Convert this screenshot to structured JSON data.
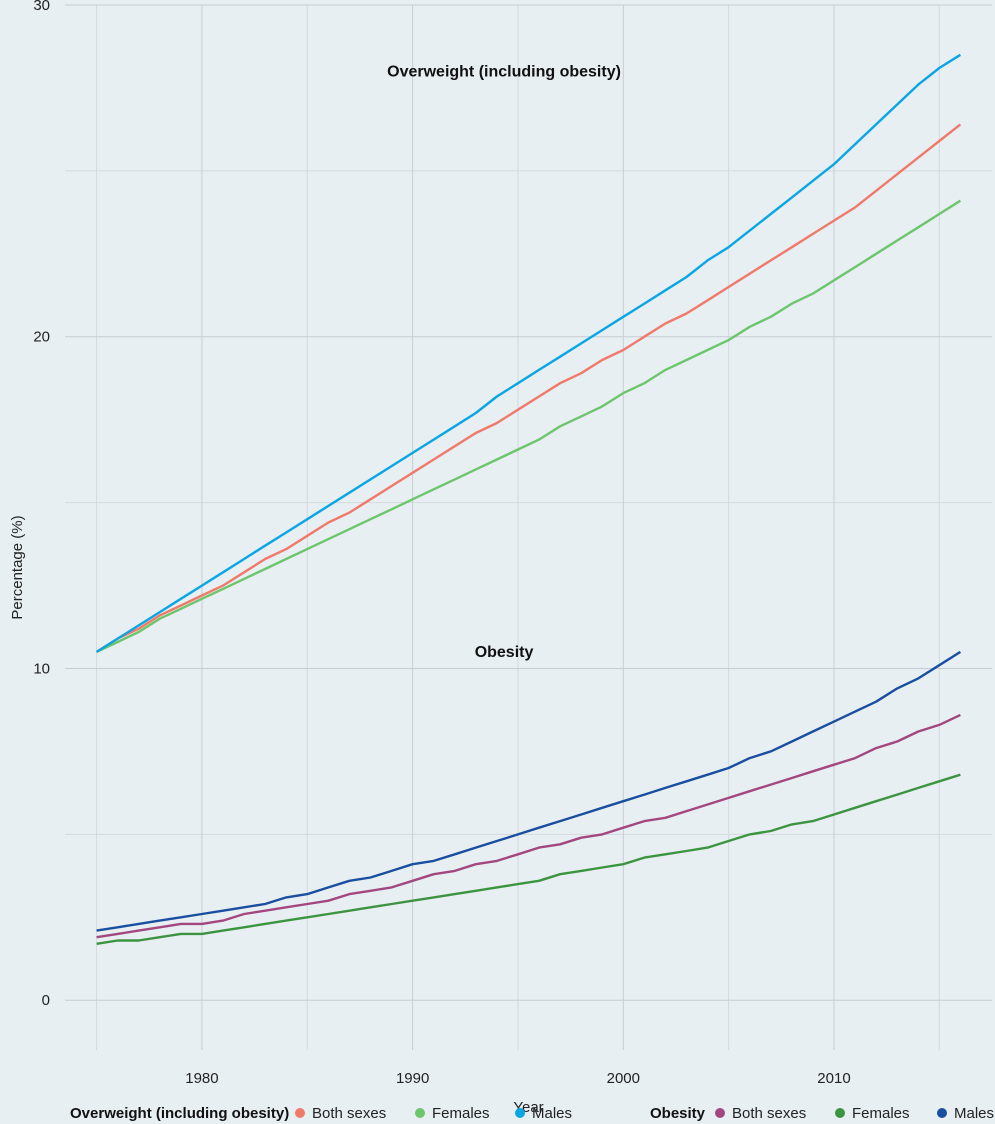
{
  "chart_data": {
    "type": "line",
    "xlabel": "Year",
    "ylabel": "Percentage (%)",
    "xlim": [
      1973.5,
      2017.5
    ],
    "ylim": [
      -1.5,
      30
    ],
    "x_ticks": [
      1980,
      1990,
      2000,
      2010
    ],
    "y_ticks": [
      0,
      10,
      20,
      30
    ],
    "grid": true,
    "legend_position": "bottom",
    "annotations": [
      {
        "text": "Overweight (including obesity)",
        "x": 1996,
        "y": 28.0
      },
      {
        "text": "Obesity",
        "x": 1996,
        "y": 10.5
      }
    ],
    "x": [
      1975,
      1976,
      1977,
      1978,
      1979,
      1980,
      1981,
      1982,
      1983,
      1984,
      1985,
      1986,
      1987,
      1988,
      1989,
      1990,
      1991,
      1992,
      1993,
      1994,
      1995,
      1996,
      1997,
      1998,
      1999,
      2000,
      2001,
      2002,
      2003,
      2004,
      2005,
      2006,
      2007,
      2008,
      2009,
      2010,
      2011,
      2012,
      2013,
      2014,
      2015,
      2016
    ],
    "groups": [
      {
        "name": "Overweight (including obesity)",
        "series": [
          {
            "name": "Both sexes",
            "color": "#f07a6a",
            "values": [
              10.5,
              10.9,
              11.2,
              11.6,
              11.9,
              12.2,
              12.5,
              12.9,
              13.3,
              13.6,
              14.0,
              14.4,
              14.7,
              15.1,
              15.5,
              15.9,
              16.3,
              16.7,
              17.1,
              17.4,
              17.8,
              18.2,
              18.6,
              18.9,
              19.3,
              19.6,
              20.0,
              20.4,
              20.7,
              21.1,
              21.5,
              21.9,
              22.3,
              22.7,
              23.1,
              23.5,
              23.9,
              24.4,
              24.9,
              25.4,
              25.9,
              26.4
            ]
          },
          {
            "name": "Females",
            "color": "#6cc66b",
            "values": [
              10.5,
              10.8,
              11.1,
              11.5,
              11.8,
              12.1,
              12.4,
              12.7,
              13.0,
              13.3,
              13.6,
              13.9,
              14.2,
              14.5,
              14.8,
              15.1,
              15.4,
              15.7,
              16.0,
              16.3,
              16.6,
              16.9,
              17.3,
              17.6,
              17.9,
              18.3,
              18.6,
              19.0,
              19.3,
              19.6,
              19.9,
              20.3,
              20.6,
              21.0,
              21.3,
              21.7,
              22.1,
              22.5,
              22.9,
              23.3,
              23.7,
              24.1
            ]
          },
          {
            "name": "Males",
            "color": "#0aa5e3",
            "values": [
              10.5,
              10.9,
              11.3,
              11.7,
              12.1,
              12.5,
              12.9,
              13.3,
              13.7,
              14.1,
              14.5,
              14.9,
              15.3,
              15.7,
              16.1,
              16.5,
              16.9,
              17.3,
              17.7,
              18.2,
              18.6,
              19.0,
              19.4,
              19.8,
              20.2,
              20.6,
              21.0,
              21.4,
              21.8,
              22.3,
              22.7,
              23.2,
              23.7,
              24.2,
              24.7,
              25.2,
              25.8,
              26.4,
              27.0,
              27.6,
              28.1,
              28.5
            ]
          }
        ]
      },
      {
        "name": "Obesity",
        "series": [
          {
            "name": "Both sexes",
            "color": "#a3477f",
            "values": [
              1.9,
              2.0,
              2.1,
              2.2,
              2.3,
              2.3,
              2.4,
              2.6,
              2.7,
              2.8,
              2.9,
              3.0,
              3.2,
              3.3,
              3.4,
              3.6,
              3.8,
              3.9,
              4.1,
              4.2,
              4.4,
              4.6,
              4.7,
              4.9,
              5.0,
              5.2,
              5.4,
              5.5,
              5.7,
              5.9,
              6.1,
              6.3,
              6.5,
              6.7,
              6.9,
              7.1,
              7.3,
              7.6,
              7.8,
              8.1,
              8.3,
              8.6
            ]
          },
          {
            "name": "Females",
            "color": "#3d9440",
            "values": [
              1.7,
              1.8,
              1.8,
              1.9,
              2.0,
              2.0,
              2.1,
              2.2,
              2.3,
              2.4,
              2.5,
              2.6,
              2.7,
              2.8,
              2.9,
              3.0,
              3.1,
              3.2,
              3.3,
              3.4,
              3.5,
              3.6,
              3.8,
              3.9,
              4.0,
              4.1,
              4.3,
              4.4,
              4.5,
              4.6,
              4.8,
              5.0,
              5.1,
              5.3,
              5.4,
              5.6,
              5.8,
              6.0,
              6.2,
              6.4,
              6.6,
              6.8
            ]
          },
          {
            "name": "Males",
            "color": "#1a4fa0",
            "values": [
              2.1,
              2.2,
              2.3,
              2.4,
              2.5,
              2.6,
              2.7,
              2.8,
              2.9,
              3.1,
              3.2,
              3.4,
              3.6,
              3.7,
              3.9,
              4.1,
              4.2,
              4.4,
              4.6,
              4.8,
              5.0,
              5.2,
              5.4,
              5.6,
              5.8,
              6.0,
              6.2,
              6.4,
              6.6,
              6.8,
              7.0,
              7.3,
              7.5,
              7.8,
              8.1,
              8.4,
              8.7,
              9.0,
              9.4,
              9.7,
              10.1,
              10.5
            ]
          }
        ]
      }
    ]
  }
}
